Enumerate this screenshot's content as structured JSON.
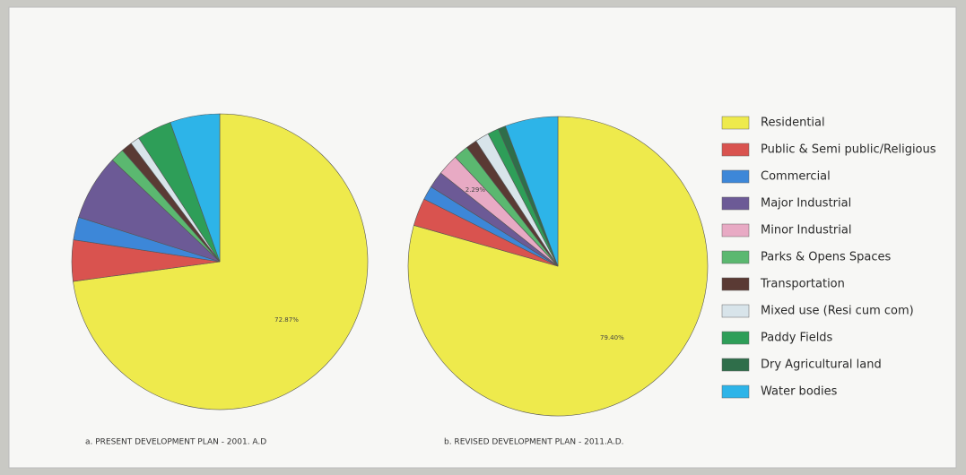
{
  "chart_data": [
    {
      "type": "pie",
      "title": "a. PRESENT DEVELOPMENT PLAN - 2001. A.D",
      "categories": [
        "Residential",
        "Public & Semi public/Religious",
        "Commercial",
        "Major Industrial",
        "Minor Industrial",
        "Parks & Opens Spaces",
        "Transportation",
        "Mixed use (Resi cum com)",
        "Paddy Fields",
        "Dry Agricultural land",
        "Water bodies"
      ],
      "colors": [
        "#eeea4c",
        "#d9534f",
        "#3d87d8",
        "#6c5a96",
        "#e8aac4",
        "#5bb870",
        "#5a3a34",
        "#d8e4ea",
        "#2e9e58",
        "#2f6e4a",
        "#2db4e8"
      ],
      "values": [
        72.87,
        4.5,
        2.5,
        7.2,
        0,
        1.5,
        1.2,
        1.0,
        3.8,
        0,
        5.43
      ],
      "value_labels": [
        "72.87%",
        null,
        null,
        null,
        null,
        null,
        null,
        null,
        null,
        null,
        null
      ]
    },
    {
      "type": "pie",
      "title": "b. REVISED DEVELOPMENT PLAN - 2011.A.D.",
      "colors": [
        "#eeea4c",
        "#d9534f",
        "#3d87d8",
        "#6c5a96",
        "#e8aac4",
        "#5bb870",
        "#5a3a34",
        "#d8e4ea",
        "#2e9e58",
        "#2f6e4a",
        "#2db4e8"
      ],
      "values": [
        79.4,
        3.0,
        1.5,
        1.8,
        2.29,
        1.6,
        1.2,
        1.5,
        1.2,
        0.8,
        5.71
      ],
      "value_labels": [
        "79.40%",
        null,
        null,
        null,
        "2.29%",
        null,
        null,
        null,
        null,
        null,
        null
      ]
    }
  ]
}
